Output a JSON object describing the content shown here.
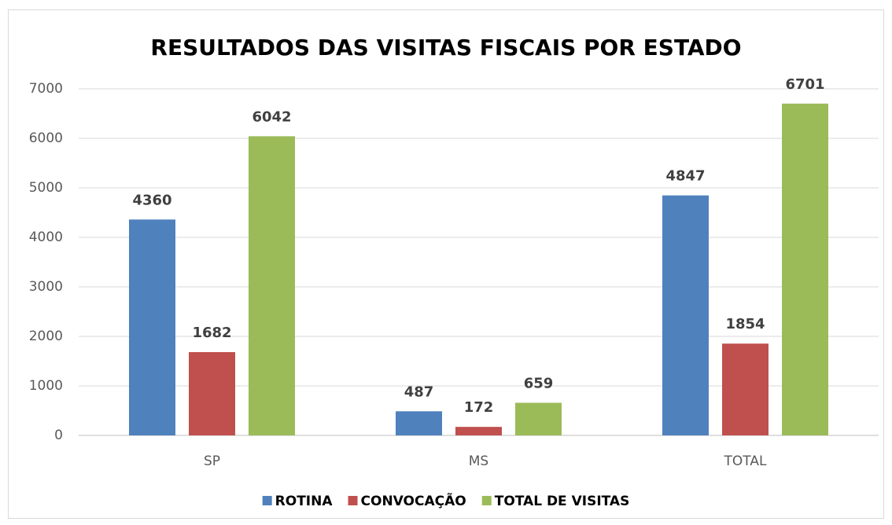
{
  "chart_data": {
    "type": "bar",
    "title": "RESULTADOS DAS VISITAS FISCAIS POR ESTADO",
    "categories": [
      "SP",
      "MS",
      "TOTAL"
    ],
    "series": [
      {
        "name": "ROTINA",
        "color": "#4f81bd",
        "values": [
          4360,
          487,
          4847
        ]
      },
      {
        "name": "CONVOCAÇÃO",
        "color": "#c0504d",
        "values": [
          1682,
          172,
          1854
        ]
      },
      {
        "name": "TOTAL DE VISITAS",
        "color": "#9bbb59",
        "values": [
          6042,
          659,
          6701
        ]
      }
    ],
    "ylim": [
      0,
      7000
    ],
    "yticks": [
      0,
      1000,
      2000,
      3000,
      4000,
      5000,
      6000,
      7000
    ],
    "grid": true,
    "legend": "bottom"
  }
}
